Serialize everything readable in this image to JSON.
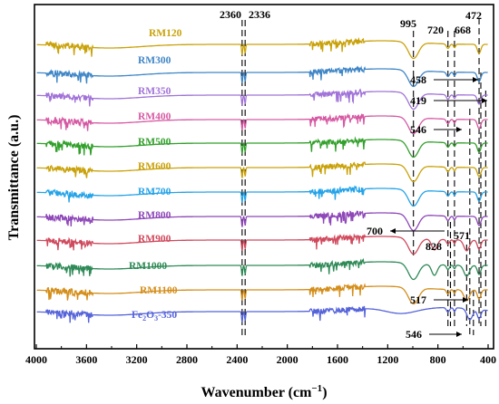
{
  "chart_data": {
    "type": "line",
    "xlabel": "Wavenumber (cm",
    "xlabel_sup": "−1",
    "xlabel_close": ")",
    "ylabel": "Transmittance (a.u.)",
    "xlim": [
      4000,
      400
    ],
    "x_reversed": true,
    "x_ticks": [
      4000,
      3600,
      3200,
      2800,
      2400,
      2000,
      1600,
      1200,
      800,
      400
    ],
    "y_ticks_shown": false,
    "grid": false,
    "legend": "inline labels on curves",
    "series": [
      {
        "name": "RM120",
        "color": "#c9a20a",
        "baseline_y": 49,
        "has_995": true,
        "has_472": true,
        "extra_dips": []
      },
      {
        "name": "RM300",
        "color": "#3f86c6",
        "baseline_y": 80,
        "has_995": true,
        "has_472": true,
        "extra_dips": []
      },
      {
        "name": "RM350",
        "color": "#a173d8",
        "baseline_y": 105,
        "has_995": true,
        "has_472": true,
        "extra_dips": []
      },
      {
        "name": "RM400",
        "color": "#d65aa3",
        "baseline_y": 132,
        "has_995": true,
        "has_472": true,
        "extra_dips": []
      },
      {
        "name": "RM500",
        "color": "#33a02c",
        "baseline_y": 158,
        "has_995": true,
        "has_472": true,
        "extra_dips": []
      },
      {
        "name": "RM600",
        "color": "#c9a20a",
        "baseline_y": 185,
        "has_995": true,
        "has_472": true,
        "extra_dips": []
      },
      {
        "name": "RM700",
        "color": "#25a3e8",
        "baseline_y": 212,
        "has_995": true,
        "has_472": true,
        "extra_dips": []
      },
      {
        "name": "RM800",
        "color": "#8e48b8",
        "baseline_y": 239,
        "has_995": true,
        "has_472": true,
        "extra_dips": []
      },
      {
        "name": "RM900",
        "color": "#d04a5d",
        "baseline_y": 265,
        "has_995": true,
        "has_472": true,
        "extra_dips": [
          828,
          571
        ]
      },
      {
        "name": "RM1000",
        "color": "#2f8a57",
        "baseline_y": 293,
        "has_995": true,
        "has_472": true,
        "extra_dips": [
          828,
          571
        ]
      },
      {
        "name": "RM1100",
        "color": "#d48e1b",
        "baseline_y": 320,
        "has_995": true,
        "has_472": true,
        "extra_dips": [
          571
        ]
      },
      {
        "name": "Fe2O3-350",
        "name_main": "Fe",
        "name_sub1": "2",
        "name_mid": "O",
        "name_sub2": "3",
        "name_tail": "-350",
        "color": "#5563d9",
        "baseline_y": 344,
        "has_995": false,
        "has_472": true,
        "extra_dips": [
          546
        ]
      }
    ],
    "peak_labels": [
      {
        "text": "2360",
        "wavenumber": 2360
      },
      {
        "text": "2336",
        "wavenumber": 2336
      },
      {
        "text": "995",
        "wavenumber": 995
      },
      {
        "text": "720",
        "wavenumber": 720
      },
      {
        "text": "668",
        "wavenumber": 668
      },
      {
        "text": "472",
        "wavenumber": 472
      },
      {
        "text": "458",
        "wavenumber": 458
      },
      {
        "text": "419",
        "wavenumber": 419
      },
      {
        "text": "546",
        "wavenumber": 546
      },
      {
        "text": "700",
        "wavenumber": 700
      },
      {
        "text": "828",
        "wavenumber": 828
      },
      {
        "text": "571",
        "wavenumber": 571
      },
      {
        "text": "517",
        "wavenumber": 517
      },
      {
        "text": "546",
        "wavenumber": 546
      }
    ],
    "dashed_guides": [
      2360,
      2336,
      995,
      720,
      700,
      668,
      571,
      546,
      517,
      472,
      458,
      419
    ]
  }
}
